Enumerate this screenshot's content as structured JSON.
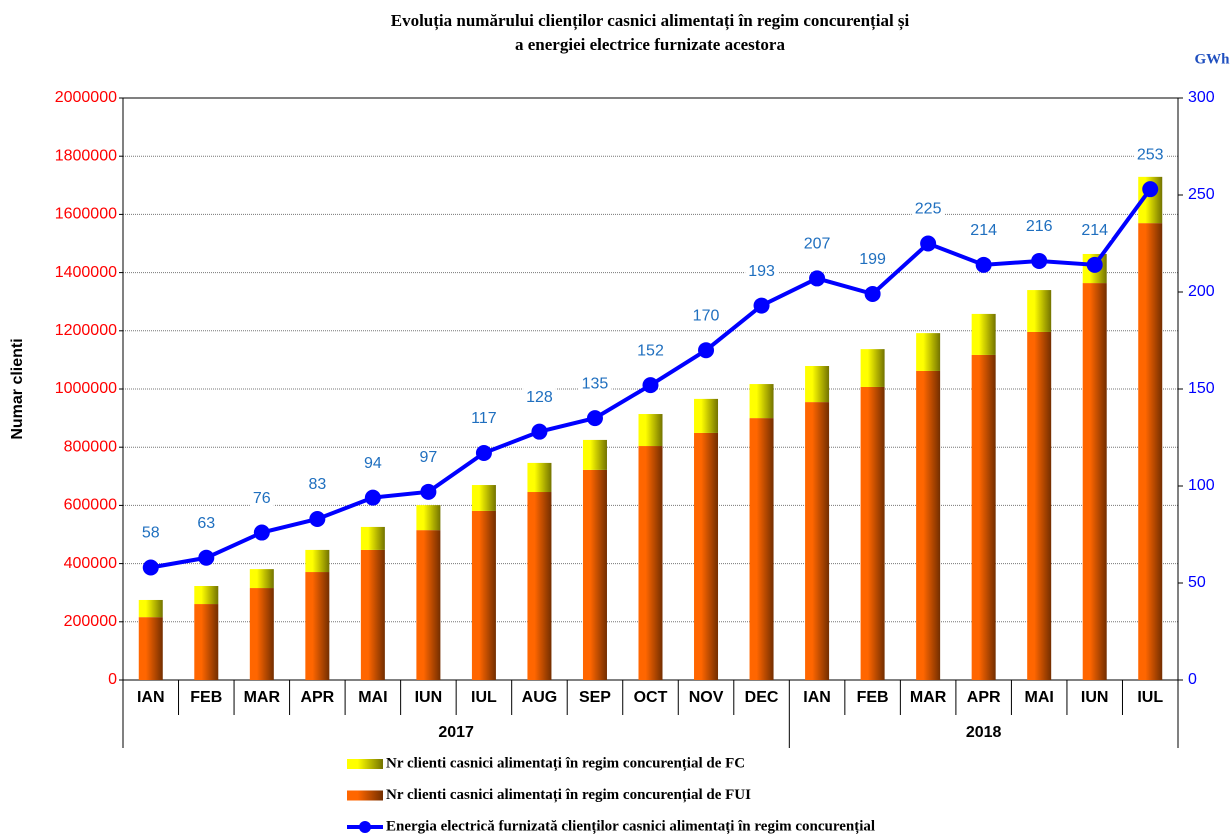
{
  "chart_data": {
    "type": "bar-line",
    "title": [
      "Evoluția numărului clienților casnici alimentați în regim concurențial și",
      "a energiei electrice furnizate acestora"
    ],
    "ylabel": "Numar clienti",
    "y2label": "GWh",
    "groups": [
      {
        "name": "2017",
        "categories": [
          "IAN",
          "FEB",
          "MAR",
          "APR",
          "MAI",
          "IUN",
          "IUL",
          "AUG",
          "SEP",
          "OCT",
          "NOV",
          "DEC"
        ]
      },
      {
        "name": "2018",
        "categories": [
          "IAN",
          "FEB",
          "MAR",
          "APR",
          "MAI",
          "IUN",
          "IUL"
        ]
      }
    ],
    "series": [
      {
        "name": "Nr clienti casnici alimentați în regim concurențial de FC",
        "type": "bar",
        "color": "#ffff00",
        "values": [
          59000,
          62000,
          65000,
          76000,
          79000,
          86000,
          89000,
          100000,
          103000,
          110000,
          117000,
          117000,
          124000,
          130000,
          130000,
          141000,
          144000,
          100000,
          159000
        ]
      },
      {
        "name": "Nr clienti casnici alimentați în regim concurențial de FUI",
        "type": "bar",
        "color": "#ff6600",
        "values": [
          216000,
          261000,
          316000,
          371000,
          447000,
          515000,
          581000,
          646000,
          722000,
          804000,
          849000,
          900000,
          955000,
          1007000,
          1062000,
          1117000,
          1196000,
          1364000,
          1570000
        ]
      },
      {
        "name": "Energia electrică furnizată clienților casnici alimentați în regim concurențial",
        "type": "line",
        "axis": "y2",
        "color": "#0000ff",
        "label_color": "#1f6fbf",
        "values": [
          58,
          63,
          76,
          83,
          94,
          97,
          117,
          128,
          135,
          152,
          170,
          193,
          207,
          199,
          225,
          214,
          216,
          214,
          253
        ]
      }
    ],
    "ylim": [
      0,
      2000000
    ],
    "yticks": [
      0,
      200000,
      400000,
      600000,
      800000,
      1000000,
      1200000,
      1400000,
      1600000,
      1800000,
      2000000
    ],
    "y2lim": [
      0,
      300
    ],
    "y2ticks": [
      0,
      50,
      100,
      150,
      200,
      250,
      300
    ],
    "ytick_color": "#ff0000",
    "y2tick_color": "#0000ff",
    "grid": true
  }
}
